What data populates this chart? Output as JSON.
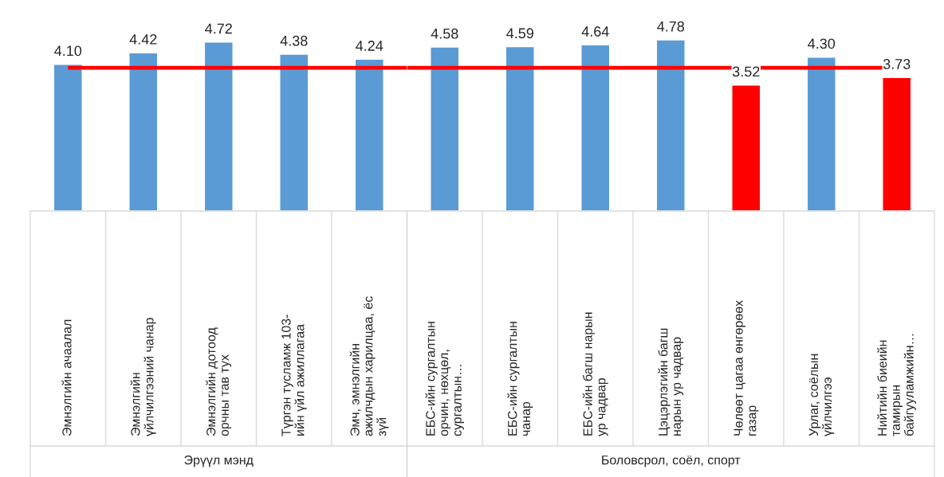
{
  "chart_data": [
    {
      "type": "bar",
      "xlabel": "Эрүүл мэнд",
      "categories": [
        "Эмнэлгийн ачаалал",
        "Эмнэлгийн\nүйлчилгээний чанар",
        "Эмнэлгийн дотоод\nорчны тав тух",
        "Түргэн тусламж 103-\nийн үйл ажиллагаа",
        "Эмч, эмнэлгийн\nажилчдын харилцаа, ёс\nзүй"
      ],
      "values": [
        4.1,
        4.42,
        4.72,
        4.38,
        4.24
      ],
      "colors": [
        "#5b9bd5",
        "#5b9bd5",
        "#5b9bd5",
        "#5b9bd5",
        "#5b9bd5"
      ],
      "value_labels": [
        "4.10",
        "4.42",
        "4.72",
        "4.38",
        "4.24"
      ],
      "ref_lines": [
        {
          "axis": "y",
          "value": 4.0,
          "color": "#ff0000"
        }
      ]
    },
    {
      "type": "bar",
      "xlabel": "Боловсрол, соёл, спорт",
      "categories": [
        "ЕБС-ийн сургалтын\nорчин, нөхцөл,\nсургалтын…",
        "ЕБС-ийн сургалтын\nчанар",
        "ЕБС-ийн багш нарын\nур чадвар",
        "Цэцэрлэгийн багш\nнарын ур чадвар",
        "Чөлөөт цагаа өнгөрөөх\nгазар",
        "Урлаг, соёлын\nүйлчилгээ",
        "Нийтийн биеийн\nтамирын\nбайгууламжийн…"
      ],
      "values": [
        4.58,
        4.59,
        4.64,
        4.78,
        3.52,
        4.3,
        3.73
      ],
      "colors": [
        "#5b9bd5",
        "#5b9bd5",
        "#5b9bd5",
        "#5b9bd5",
        "#ff0000",
        "#5b9bd5",
        "#ff0000"
      ],
      "value_labels": [
        "4.58",
        "4.59",
        "4.64",
        "4.78",
        "3.52",
        "4.30",
        "3.73"
      ],
      "ref_lines": [
        {
          "axis": "y",
          "value": 4.0,
          "color": "#ff0000"
        }
      ]
    }
  ]
}
